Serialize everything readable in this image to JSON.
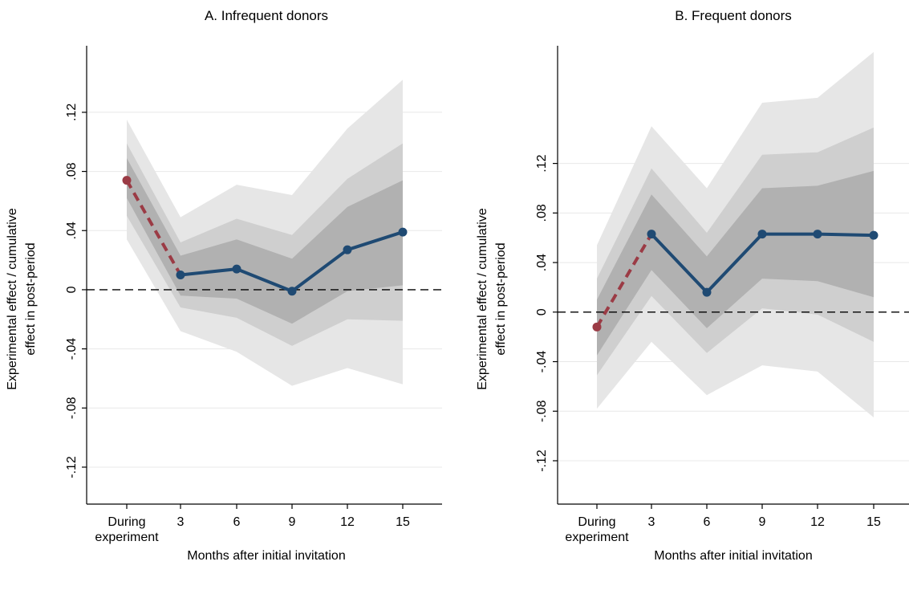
{
  "chart_data": [
    {
      "type": "line",
      "title": "A. Infrequent donors",
      "xlabel": "Months after initial invitation",
      "ylabel": [
        "Experimental effect / cumulative",
        "effect in post-period"
      ],
      "categories": [
        [
          "During",
          "experiment"
        ],
        "3",
        "6",
        "9",
        "12",
        "15"
      ],
      "ylim": [
        -0.145,
        0.165
      ],
      "yticks": [
        -0.12,
        -0.08,
        -0.04,
        0,
        0.04,
        0.08,
        0.12
      ],
      "yticklabels": [
        "-.12",
        "-.08",
        "-.04",
        "0",
        ".04",
        ".08",
        ".12"
      ],
      "grid": true,
      "reference_line_y": 0,
      "point_estimate": [
        0.074,
        0.01,
        0.014,
        -0.001,
        0.027,
        0.039
      ],
      "bands": [
        {
          "level": "outer",
          "lower": [
            0.034,
            -0.028,
            -0.042,
            -0.065,
            -0.053,
            -0.064
          ],
          "upper": [
            0.115,
            0.049,
            0.071,
            0.064,
            0.109,
            0.142
          ]
        },
        {
          "level": "middle",
          "lower": [
            0.05,
            -0.012,
            -0.019,
            -0.038,
            -0.02,
            -0.021
          ],
          "upper": [
            0.099,
            0.032,
            0.048,
            0.037,
            0.075,
            0.099
          ]
        },
        {
          "level": "inner",
          "lower": [
            0.062,
            -0.004,
            -0.006,
            -0.023,
            -0.001,
            0.003
          ],
          "upper": [
            0.089,
            0.023,
            0.034,
            0.021,
            0.056,
            0.074
          ]
        }
      ]
    },
    {
      "type": "line",
      "title": "B. Frequent donors",
      "xlabel": "Months after initial invitation",
      "ylabel": [
        "Experimental effect / cumulative",
        "effect in post-period"
      ],
      "categories": [
        [
          "During",
          "experiment"
        ],
        "3",
        "6",
        "9",
        "12",
        "15"
      ],
      "ylim": [
        -0.155,
        0.215
      ],
      "yticks": [
        -0.12,
        -0.08,
        -0.04,
        0,
        0.04,
        0.08,
        0.12
      ],
      "yticklabels": [
        "-.12",
        "-.08",
        "-.04",
        "0",
        ".04",
        ".08",
        ".12"
      ],
      "grid": true,
      "reference_line_y": 0,
      "point_estimate": [
        -0.012,
        0.063,
        0.016,
        0.063,
        0.063,
        0.062
      ],
      "bands": [
        {
          "level": "outer",
          "lower": [
            -0.078,
            -0.024,
            -0.067,
            -0.043,
            -0.048,
            -0.085
          ],
          "upper": [
            0.054,
            0.15,
            0.1,
            0.169,
            0.173,
            0.21
          ]
        },
        {
          "level": "middle",
          "lower": [
            -0.051,
            0.013,
            -0.033,
            0.003,
            -0.002,
            -0.024
          ],
          "upper": [
            0.027,
            0.116,
            0.064,
            0.127,
            0.129,
            0.149
          ]
        },
        {
          "level": "inner",
          "lower": [
            -0.035,
            0.034,
            -0.013,
            0.027,
            0.025,
            0.012
          ],
          "upper": [
            0.01,
            0.095,
            0.045,
            0.1,
            0.102,
            0.114
          ]
        }
      ]
    }
  ],
  "colors": {
    "band_outer": "#e6e6e6",
    "band_middle": "#cfcfcf",
    "band_inner": "#b1b1b1",
    "estimate": "#1f4a73",
    "during_segment": "#9b3b45",
    "grid": "#e8e8e8",
    "axis": "#000000"
  }
}
